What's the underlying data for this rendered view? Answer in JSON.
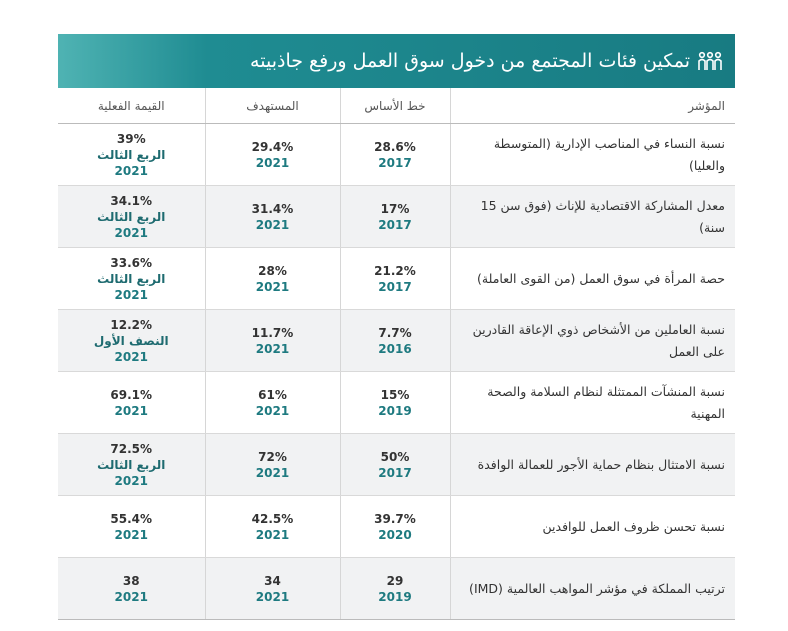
{
  "header": {
    "title": "تمكين فئات المجتمع من دخول سوق العمل ورفع جاذبيته"
  },
  "table": {
    "columns": [
      "المؤشر",
      "خط الأساس",
      "المستهدف",
      "القيمة الفعلية"
    ],
    "rows": [
      {
        "indicator": "نسبة النساء في المناصب الإدارية (المتوسطة والعليا)",
        "baseline": {
          "value": "28.6%",
          "year": "2017"
        },
        "target": {
          "value": "29.4%",
          "year": "2021"
        },
        "actual": {
          "value": "39%",
          "period": "الربع الثالث",
          "year": "2021"
        }
      },
      {
        "indicator": "معدل المشاركة الاقتصادية للإناث (فوق سن 15 سنة)",
        "baseline": {
          "value": "17%",
          "year": "2017"
        },
        "target": {
          "value": "31.4%",
          "year": "2021"
        },
        "actual": {
          "value": "34.1%",
          "period": "الربع الثالث",
          "year": "2021"
        }
      },
      {
        "indicator": "حصة المرأة في سوق العمل (من القوى العاملة)",
        "baseline": {
          "value": "21.2%",
          "year": "2017"
        },
        "target": {
          "value": "28%",
          "year": "2021"
        },
        "actual": {
          "value": "33.6%",
          "period": "الربع الثالث",
          "year": "2021"
        }
      },
      {
        "indicator": "نسبة العاملين من الأشخاص ذوي الإعاقة القادرين على العمل",
        "baseline": {
          "value": "7.7%",
          "year": "2016"
        },
        "target": {
          "value": "11.7%",
          "year": "2021"
        },
        "actual": {
          "value": "12.2%",
          "period": "النصف الأول",
          "year": "2021"
        }
      },
      {
        "indicator": "نسبة المنشآت الممتثلة لنظام السلامة والصحة المهنية",
        "baseline": {
          "value": "15%",
          "year": "2019"
        },
        "target": {
          "value": "61%",
          "year": "2021"
        },
        "actual": {
          "value": "69.1%",
          "year": "2021"
        }
      },
      {
        "indicator": "نسبة الامتثال بنظام حماية الأجور للعمالة الوافدة",
        "baseline": {
          "value": "50%",
          "year": "2017"
        },
        "target": {
          "value": "72%",
          "year": "2021"
        },
        "actual": {
          "value": "72.5%",
          "period": "الربع الثالث",
          "year": "2021"
        }
      },
      {
        "indicator": "نسبة تحسن ظروف العمل للوافدين",
        "baseline": {
          "value": "39.7%",
          "year": "2020"
        },
        "target": {
          "value": "42.5%",
          "year": "2021"
        },
        "actual": {
          "value": "55.4%",
          "year": "2021"
        }
      },
      {
        "indicator": "ترتيب المملكة في مؤشر المواهب العالمية (IMD)",
        "baseline": {
          "value": "29",
          "year": "2019"
        },
        "target": {
          "value": "34",
          "year": "2021"
        },
        "actual": {
          "value": "38",
          "year": "2021"
        }
      }
    ]
  }
}
